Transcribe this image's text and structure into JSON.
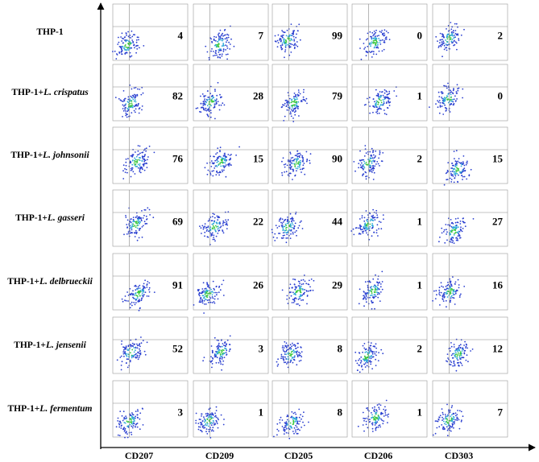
{
  "rows": [
    {
      "prefix": "THP-1",
      "values": [
        4,
        7,
        99,
        0,
        2
      ]
    },
    {
      "prefix": "THP-1+",
      "species": "L. crispatus",
      "values": [
        82,
        28,
        79,
        1,
        0
      ]
    },
    {
      "prefix": "THP-1+",
      "species": "L. johnsonii",
      "values": [
        76,
        15,
        90,
        2,
        15
      ]
    },
    {
      "prefix": "THP-1+",
      "species": "L. gasseri",
      "values": [
        69,
        22,
        44,
        1,
        27
      ]
    },
    {
      "prefix": "THP-1+",
      "species": "L. delbrueckii",
      "values": [
        91,
        26,
        29,
        1,
        16
      ]
    },
    {
      "prefix": "THP-1+",
      "species": "L. jensenii",
      "values": [
        52,
        3,
        8,
        2,
        12
      ]
    },
    {
      "prefix": "THP-1+",
      "species": "L. fermentum",
      "values": [
        3,
        1,
        8,
        1,
        7
      ]
    }
  ],
  "columns": [
    "CD207",
    "CD209",
    "CD205",
    "CD206",
    "CD303"
  ]
}
